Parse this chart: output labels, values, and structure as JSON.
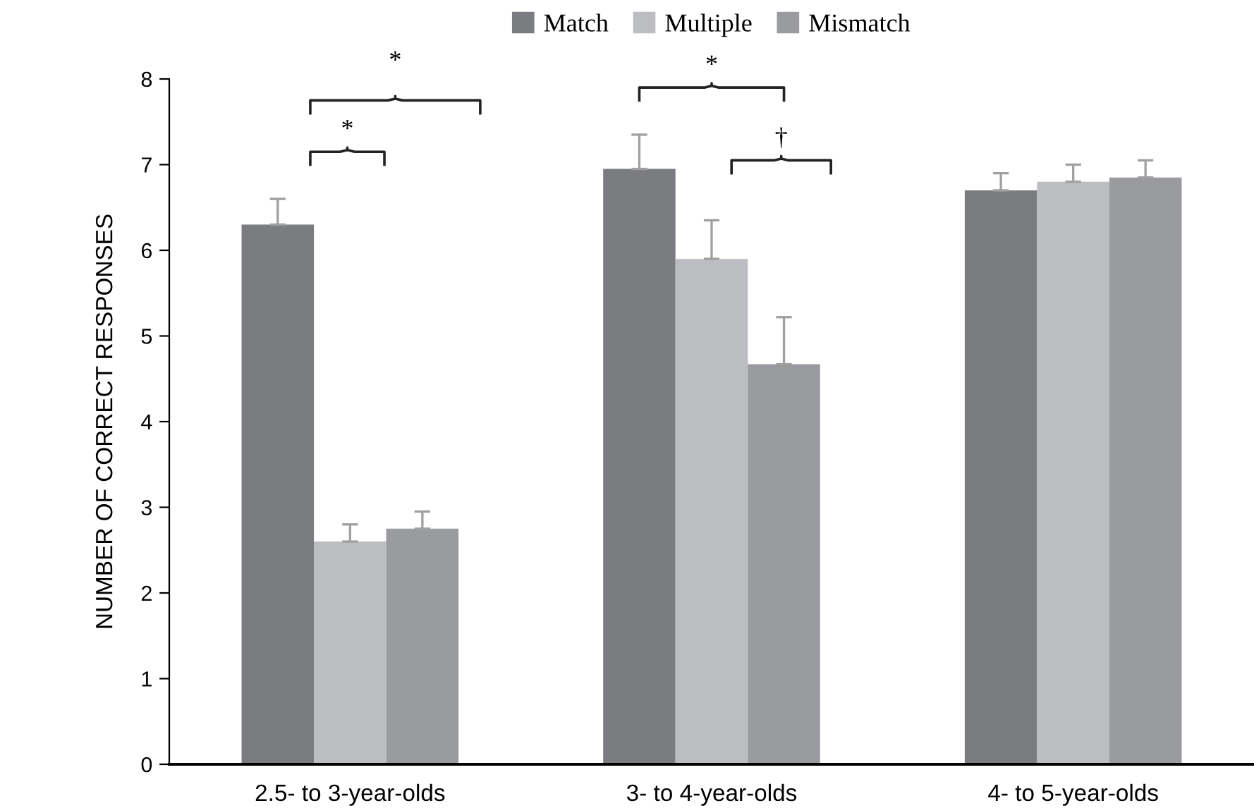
{
  "chart_data": {
    "type": "bar",
    "ylabel": "NUMBER OF CORRECT RESPONSES",
    "categories": [
      "2.5- to 3-year-olds",
      "3- to 4-year-olds",
      "4- to 5-year-olds"
    ],
    "series": [
      {
        "name": "Match",
        "color": "#7b7c80",
        "values": [
          6.3,
          6.95,
          6.7
        ],
        "errors": [
          [
            6.3,
            6.6
          ],
          [
            6.95,
            7.35
          ],
          [
            6.7,
            6.9
          ]
        ]
      },
      {
        "name": "Multiple",
        "color": "#bcbdc1",
        "values": [
          2.6,
          5.9,
          6.8
        ],
        "errors": [
          [
            2.6,
            2.8
          ],
          [
            5.9,
            6.35
          ],
          [
            6.8,
            7.0
          ]
        ]
      },
      {
        "name": "Mismatch",
        "color": "#9a9b9f",
        "values": [
          2.75,
          4.67,
          6.85
        ],
        "errors": [
          [
            2.75,
            2.95
          ],
          [
            4.67,
            5.22
          ],
          [
            6.85,
            7.05
          ]
        ]
      }
    ],
    "ylim": [
      0,
      8
    ],
    "yticks": [
      0,
      1,
      2,
      3,
      4,
      5,
      6,
      7,
      8
    ],
    "grid": false,
    "legend": "top",
    "annotations": [
      "*",
      "*",
      "*",
      "†"
    ]
  }
}
